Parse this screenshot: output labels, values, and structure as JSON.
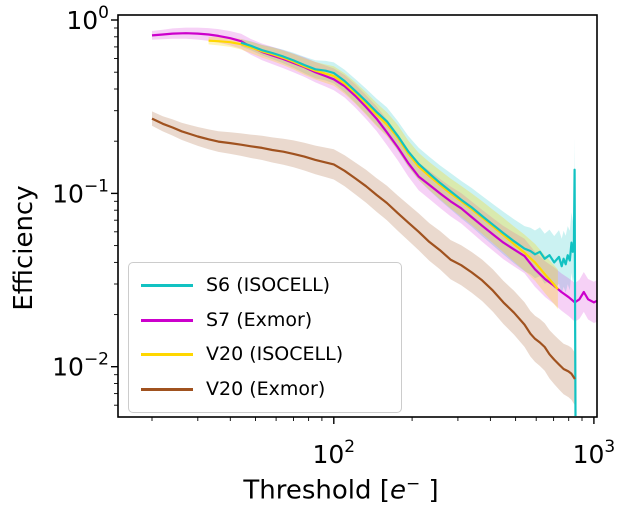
{
  "figure": {
    "ylabel": "Efficiency",
    "xlabel": {
      "pre": "Threshold [",
      "sym": "e",
      "sup": "−",
      "post": " ]"
    }
  },
  "chart_data": {
    "type": "line",
    "title": "",
    "xlabel": "Threshold [e−]",
    "ylabel": "Efficiency",
    "x_scale": "log",
    "y_scale": "log",
    "xlim": [
      14.8,
      1028
    ],
    "ylim": [
      0.00513,
      1.069
    ],
    "grid": false,
    "legend_position": "lower left",
    "axis_color": "#000000",
    "x_ticks": [
      {
        "v": 100,
        "label": "10^2"
      },
      {
        "v": 1000,
        "label": "10^3"
      }
    ],
    "y_ticks": [
      {
        "v": 1,
        "label": "10^0"
      },
      {
        "v": 0.1,
        "label": "10^−1"
      },
      {
        "v": 0.01,
        "label": "10^−2"
      }
    ],
    "x_minor_ticks": [
      20,
      30,
      40,
      50,
      60,
      70,
      80,
      90,
      200,
      300,
      400,
      500,
      600,
      700,
      800,
      900
    ],
    "y_minor_ticks": [
      0.9,
      0.8,
      0.7,
      0.6,
      0.5,
      0.4,
      0.3,
      0.2,
      0.09,
      0.08,
      0.07,
      0.06,
      0.05,
      0.04,
      0.03,
      0.02,
      0.009,
      0.008,
      0.007,
      0.006
    ],
    "series": [
      {
        "name": "S6 (ISOCELL)",
        "color": "#12c2c2",
        "band_opacity": 0.22,
        "band_ratio": [
          0.05,
          0.55
        ],
        "x": [
          44,
          48,
          53,
          58,
          64,
          70,
          77,
          85,
          93,
          100,
          110,
          121,
          133,
          146,
          160,
          176,
          193,
          212,
          233,
          256,
          281,
          309,
          339,
          372,
          409,
          449,
          493,
          541,
          570,
          594,
          620,
          647,
          675,
          704,
          734,
          752,
          765,
          779,
          793,
          808,
          820,
          830,
          838,
          843,
          847,
          850
        ],
        "y": [
          0.74,
          0.71,
          0.67,
          0.645,
          0.615,
          0.585,
          0.55,
          0.52,
          0.51,
          0.495,
          0.445,
          0.39,
          0.34,
          0.295,
          0.26,
          0.215,
          0.175,
          0.148,
          0.13,
          0.115,
          0.103,
          0.092,
          0.083,
          0.074,
          0.066,
          0.059,
          0.053,
          0.048,
          0.0465,
          0.0445,
          0.046,
          0.042,
          0.044,
          0.04,
          0.043,
          0.038,
          0.042,
          0.039,
          0.044,
          0.041,
          0.052,
          0.046,
          0.05,
          0.137,
          0.02,
          0.0052
        ]
      },
      {
        "name": "S7 (Exmor)",
        "color": "#cc00cc",
        "band_opacity": 0.18,
        "band_ratio": [
          0.06,
          0.32
        ],
        "x": [
          20,
          22,
          24,
          27,
          30,
          33,
          36,
          40,
          44,
          48,
          53,
          58,
          64,
          70,
          77,
          85,
          93,
          100,
          110,
          121,
          133,
          146,
          160,
          176,
          193,
          212,
          233,
          256,
          281,
          309,
          339,
          372,
          409,
          449,
          493,
          541,
          594,
          650,
          700,
          750,
          800,
          845,
          880,
          915,
          950,
          1000,
          1028
        ],
        "y": [
          0.815,
          0.825,
          0.835,
          0.84,
          0.835,
          0.825,
          0.81,
          0.785,
          0.755,
          0.7,
          0.655,
          0.625,
          0.595,
          0.565,
          0.535,
          0.5,
          0.475,
          0.455,
          0.415,
          0.365,
          0.315,
          0.27,
          0.225,
          0.185,
          0.15,
          0.125,
          0.112,
          0.1,
          0.09,
          0.082,
          0.073,
          0.065,
          0.058,
          0.052,
          0.0475,
          0.0435,
          0.0365,
          0.032,
          0.0295,
          0.027,
          0.0252,
          0.0235,
          0.0245,
          0.027,
          0.0245,
          0.0235,
          0.024
        ]
      },
      {
        "name": "V20 (ISOCELL)",
        "color": "#ffd700",
        "band_opacity": 0.28,
        "band_ratio": [
          0.05,
          0.3
        ],
        "x": [
          33,
          36,
          40,
          44,
          48,
          53,
          58,
          64,
          70,
          77,
          85,
          93,
          100,
          110,
          121,
          133,
          146,
          160,
          176,
          193,
          212,
          233,
          256,
          281,
          309,
          339,
          372,
          409,
          449,
          493,
          541,
          594,
          650,
          700,
          727
        ],
        "y": [
          0.76,
          0.755,
          0.745,
          0.725,
          0.695,
          0.66,
          0.635,
          0.605,
          0.575,
          0.54,
          0.51,
          0.49,
          0.475,
          0.43,
          0.38,
          0.33,
          0.285,
          0.25,
          0.21,
          0.17,
          0.143,
          0.126,
          0.112,
          0.1,
          0.09,
          0.081,
          0.0725,
          0.0645,
          0.0575,
          0.051,
          0.0455,
          0.04,
          0.034,
          0.03,
          0.028
        ]
      },
      {
        "name": "V20 (Exmor)",
        "color": "#a0521f",
        "band_opacity": 0.22,
        "band_ratio": [
          0.1,
          0.42
        ],
        "x": [
          20,
          22,
          24,
          26,
          28,
          30,
          33,
          36,
          40,
          44,
          48,
          53,
          58,
          64,
          70,
          77,
          85,
          93,
          100,
          110,
          121,
          133,
          146,
          160,
          176,
          193,
          212,
          233,
          256,
          281,
          309,
          339,
          372,
          409,
          449,
          493,
          541,
          570,
          594,
          620,
          647,
          675,
          704,
          734,
          765,
          798,
          820,
          845
        ],
        "y": [
          0.27,
          0.252,
          0.24,
          0.228,
          0.22,
          0.213,
          0.205,
          0.199,
          0.195,
          0.191,
          0.187,
          0.183,
          0.178,
          0.174,
          0.169,
          0.163,
          0.156,
          0.151,
          0.147,
          0.135,
          0.122,
          0.11,
          0.098,
          0.088,
          0.077,
          0.068,
          0.06,
          0.0525,
          0.047,
          0.0415,
          0.0385,
          0.035,
          0.0315,
          0.0275,
          0.0235,
          0.0205,
          0.0175,
          0.0155,
          0.0145,
          0.0138,
          0.013,
          0.0118,
          0.011,
          0.0103,
          0.0097,
          0.0094,
          0.0091,
          0.0085
        ]
      }
    ]
  }
}
